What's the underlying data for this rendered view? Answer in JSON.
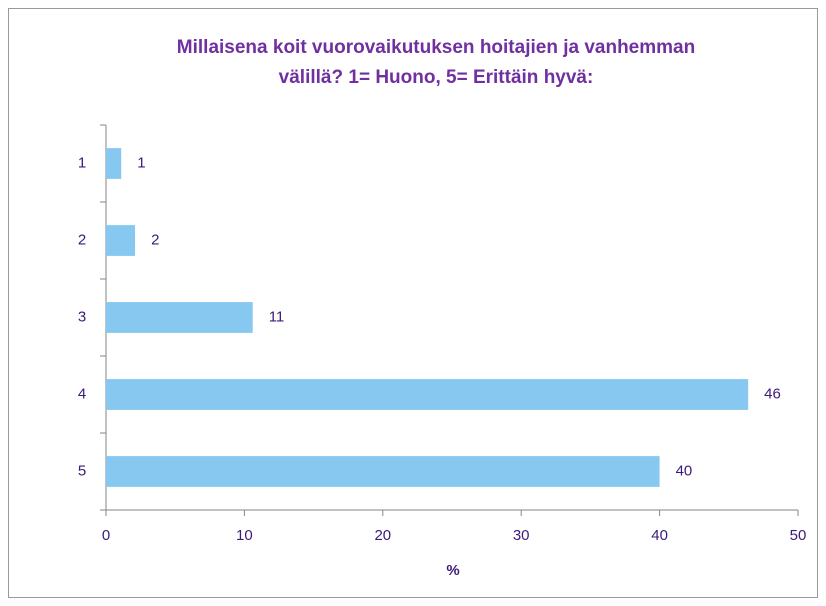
{
  "chart_data": {
    "type": "barh",
    "title": [
      "Millaisena koit vuorovaikutuksen hoitajien ja vanhemman",
      "välillä? 1= Huono, 5= Erittäin hyvä:"
    ],
    "categories": [
      "1",
      "2",
      "3",
      "4",
      "5"
    ],
    "values": [
      1.1,
      2.1,
      10.6,
      46.4,
      40
    ],
    "value_labels": [
      "1",
      "2",
      "11",
      "46",
      "40"
    ],
    "color": "#87c8f0",
    "xlabel": "%",
    "xlim": [
      0,
      50
    ],
    "xticks": [
      0,
      10,
      20,
      30,
      40,
      50
    ],
    "grid": false
  }
}
